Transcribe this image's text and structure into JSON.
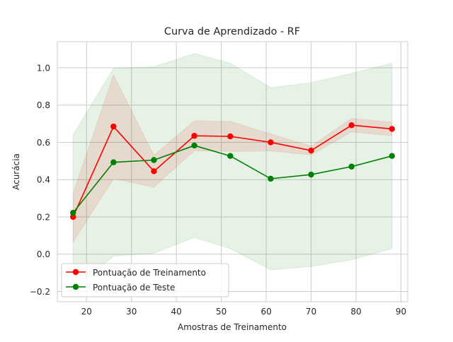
{
  "chart_data": {
    "type": "line",
    "title": "Curva de Aprendizado - RF",
    "xlabel": "Amostras de Treinamento",
    "ylabel": "Acurácia",
    "xlim": [
      13.5,
      91.5
    ],
    "ylim": [
      -0.255,
      1.14
    ],
    "xticks": [
      20,
      30,
      40,
      50,
      60,
      70,
      80,
      90
    ],
    "yticks": [
      -0.2,
      0.0,
      0.2,
      0.4,
      0.6,
      0.8,
      1.0
    ],
    "ytick_labels": [
      "−0.2",
      "0.0",
      "0.2",
      "0.4",
      "0.6",
      "0.8",
      "1.0"
    ],
    "grid": true,
    "legend_position": "lower-left",
    "x": [
      17,
      26,
      35,
      44,
      52,
      61,
      70,
      79,
      88
    ],
    "series": [
      {
        "name": "Pontuação de Treinamento",
        "color": "#ff0000",
        "band_color": "#ff0000",
        "values": [
          0.2,
          0.685,
          0.445,
          0.635,
          0.632,
          0.6,
          0.556,
          0.692,
          0.672
        ],
        "band_upper": [
          0.325,
          0.962,
          0.53,
          0.715,
          0.712,
          0.645,
          0.58,
          0.728,
          0.708
        ],
        "band_lower": [
          0.065,
          0.405,
          0.36,
          0.555,
          0.552,
          0.555,
          0.532,
          0.656,
          0.636
        ]
      },
      {
        "name": "Pontuação de Teste",
        "color": "#008000",
        "band_color": "#008000",
        "values": [
          0.222,
          0.493,
          0.505,
          0.583,
          0.527,
          0.405,
          0.427,
          0.47,
          0.527
        ],
        "band_upper": [
          0.64,
          0.997,
          1.005,
          1.077,
          1.025,
          0.893,
          0.92,
          0.97,
          1.025
        ],
        "band_lower": [
          -0.196,
          -0.01,
          0.005,
          0.09,
          0.03,
          -0.084,
          -0.066,
          -0.03,
          0.03
        ]
      }
    ]
  }
}
